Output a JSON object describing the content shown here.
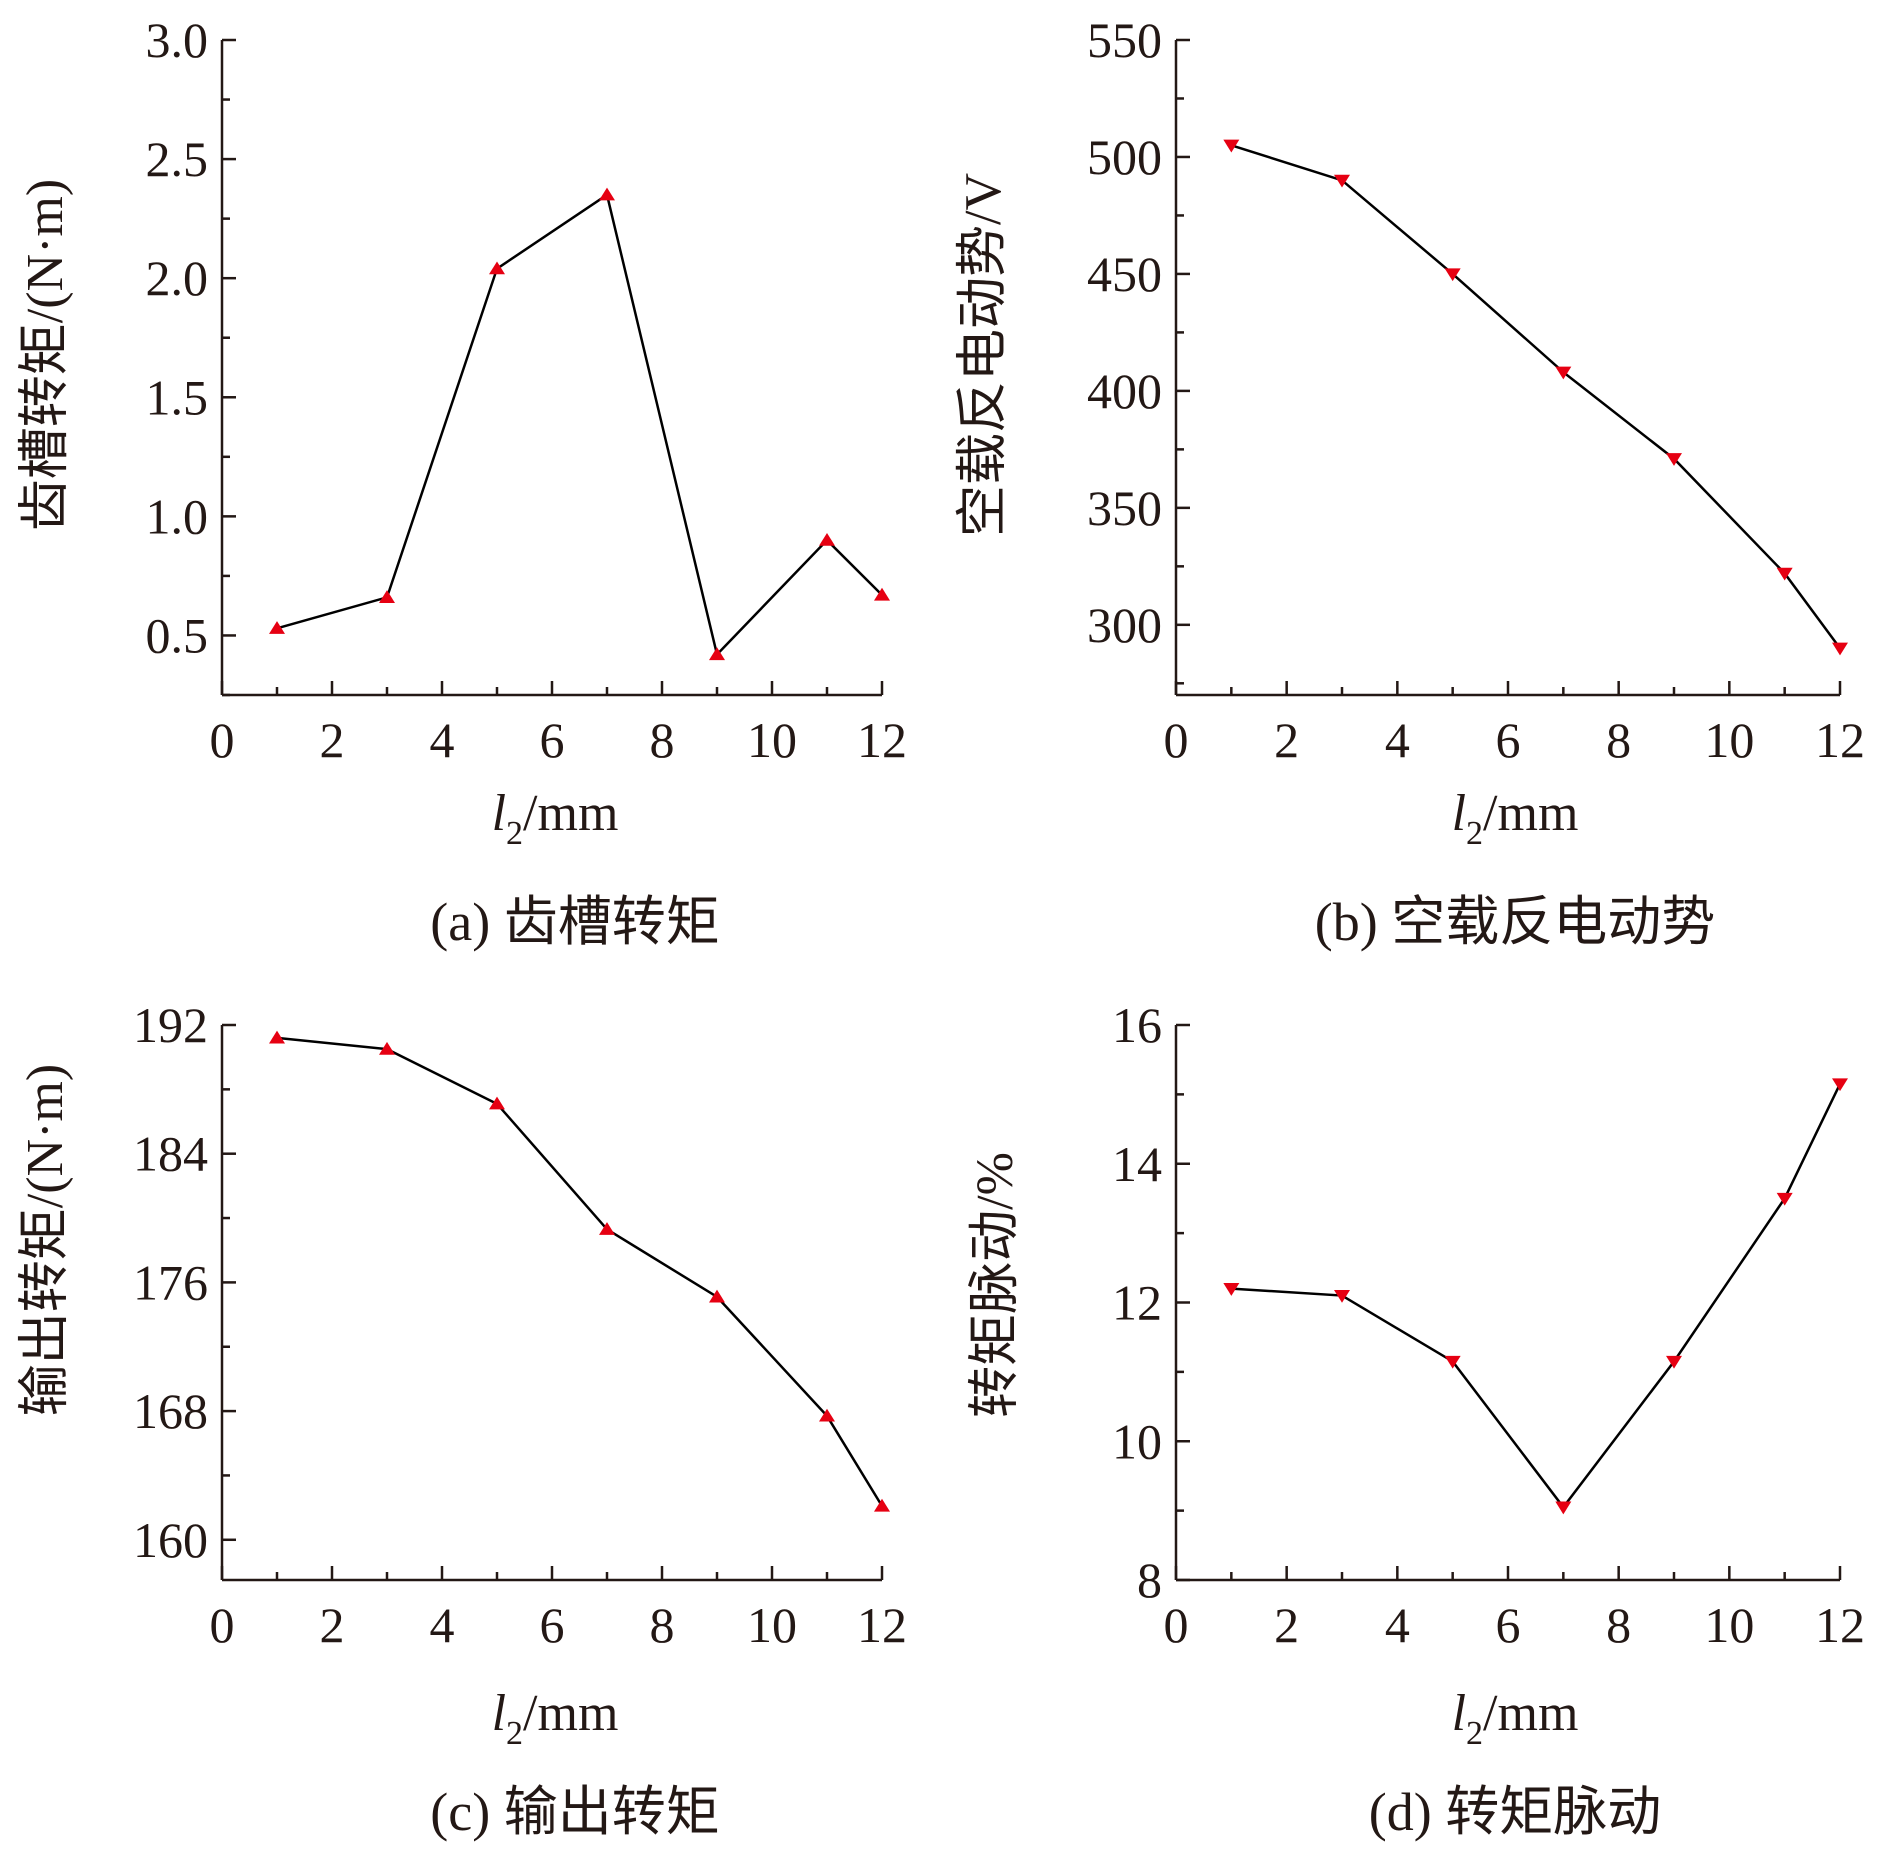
{
  "colors": {
    "marker": "#e60012",
    "line": "#000000",
    "axis": "#231815"
  },
  "chart_data": [
    {
      "id": "a",
      "type": "line",
      "caption": "(a) 齿槽转矩",
      "xlabel_var": "l",
      "xlabel_sub": "2",
      "xlabel_unit": "/mm",
      "ylabel": "齿槽转矩/(N·m)",
      "xlim": [
        0,
        12
      ],
      "ylim": [
        0.25,
        3.0
      ],
      "xticks": [
        0,
        2,
        4,
        6,
        8,
        10,
        12
      ],
      "yticks": [
        0.5,
        1.0,
        1.5,
        2.0,
        2.5,
        3.0
      ],
      "ytick_labels": [
        "0.5",
        "1.0",
        "1.5",
        "2.0",
        "2.5",
        "3.0"
      ],
      "marker": "triangle-up",
      "x": [
        1,
        3,
        5,
        7,
        9,
        11,
        12
      ],
      "y": [
        0.53,
        0.66,
        2.04,
        2.35,
        0.42,
        0.9,
        0.67
      ]
    },
    {
      "id": "b",
      "type": "line",
      "caption": "(b) 空载反电动势",
      "xlabel_var": "l",
      "xlabel_sub": "2",
      "xlabel_unit": "/mm",
      "ylabel": "空载反电动势/V",
      "xlim": [
        0,
        12
      ],
      "ylim": [
        270,
        550
      ],
      "xticks": [
        0,
        2,
        4,
        6,
        8,
        10,
        12
      ],
      "yticks": [
        300,
        350,
        400,
        450,
        500,
        550
      ],
      "ytick_labels": [
        "300",
        "350",
        "400",
        "450",
        "500",
        "550"
      ],
      "marker": "triangle-down",
      "x": [
        1,
        3,
        5,
        7,
        9,
        11,
        12
      ],
      "y": [
        505,
        490,
        450,
        408,
        371,
        322,
        290
      ]
    },
    {
      "id": "c",
      "type": "line",
      "caption": "(c) 输出转矩",
      "xlabel_var": "l",
      "xlabel_sub": "2",
      "xlabel_unit": "/mm",
      "ylabel": "输出转矩/(N·m)",
      "xlim": [
        0,
        12
      ],
      "ylim": [
        157.5,
        192
      ],
      "xticks": [
        0,
        2,
        4,
        6,
        8,
        10,
        12
      ],
      "yticks": [
        160,
        168,
        176,
        184,
        192
      ],
      "ytick_labels": [
        "160",
        "168",
        "176",
        "184",
        "192"
      ],
      "marker": "triangle-up",
      "x": [
        1,
        3,
        5,
        7,
        9,
        11,
        12
      ],
      "y": [
        191.2,
        190.5,
        187.1,
        179.3,
        175.1,
        167.7,
        162.1
      ]
    },
    {
      "id": "d",
      "type": "line",
      "caption": "(d) 转矩脉动",
      "xlabel_var": "l",
      "xlabel_sub": "2",
      "xlabel_unit": "/mm",
      "ylabel": "转矩脉动/%",
      "xlim": [
        0,
        12
      ],
      "ylim": [
        8,
        16
      ],
      "xticks": [
        0,
        2,
        4,
        6,
        8,
        10,
        12
      ],
      "yticks": [
        8,
        10,
        12,
        14,
        16
      ],
      "ytick_labels": [
        "8",
        "10",
        "12",
        "14",
        "16"
      ],
      "marker": "triangle-down",
      "x": [
        1,
        3,
        5,
        7,
        9,
        11,
        12
      ],
      "y": [
        12.2,
        12.1,
        11.15,
        9.05,
        11.15,
        13.5,
        15.15
      ]
    }
  ]
}
